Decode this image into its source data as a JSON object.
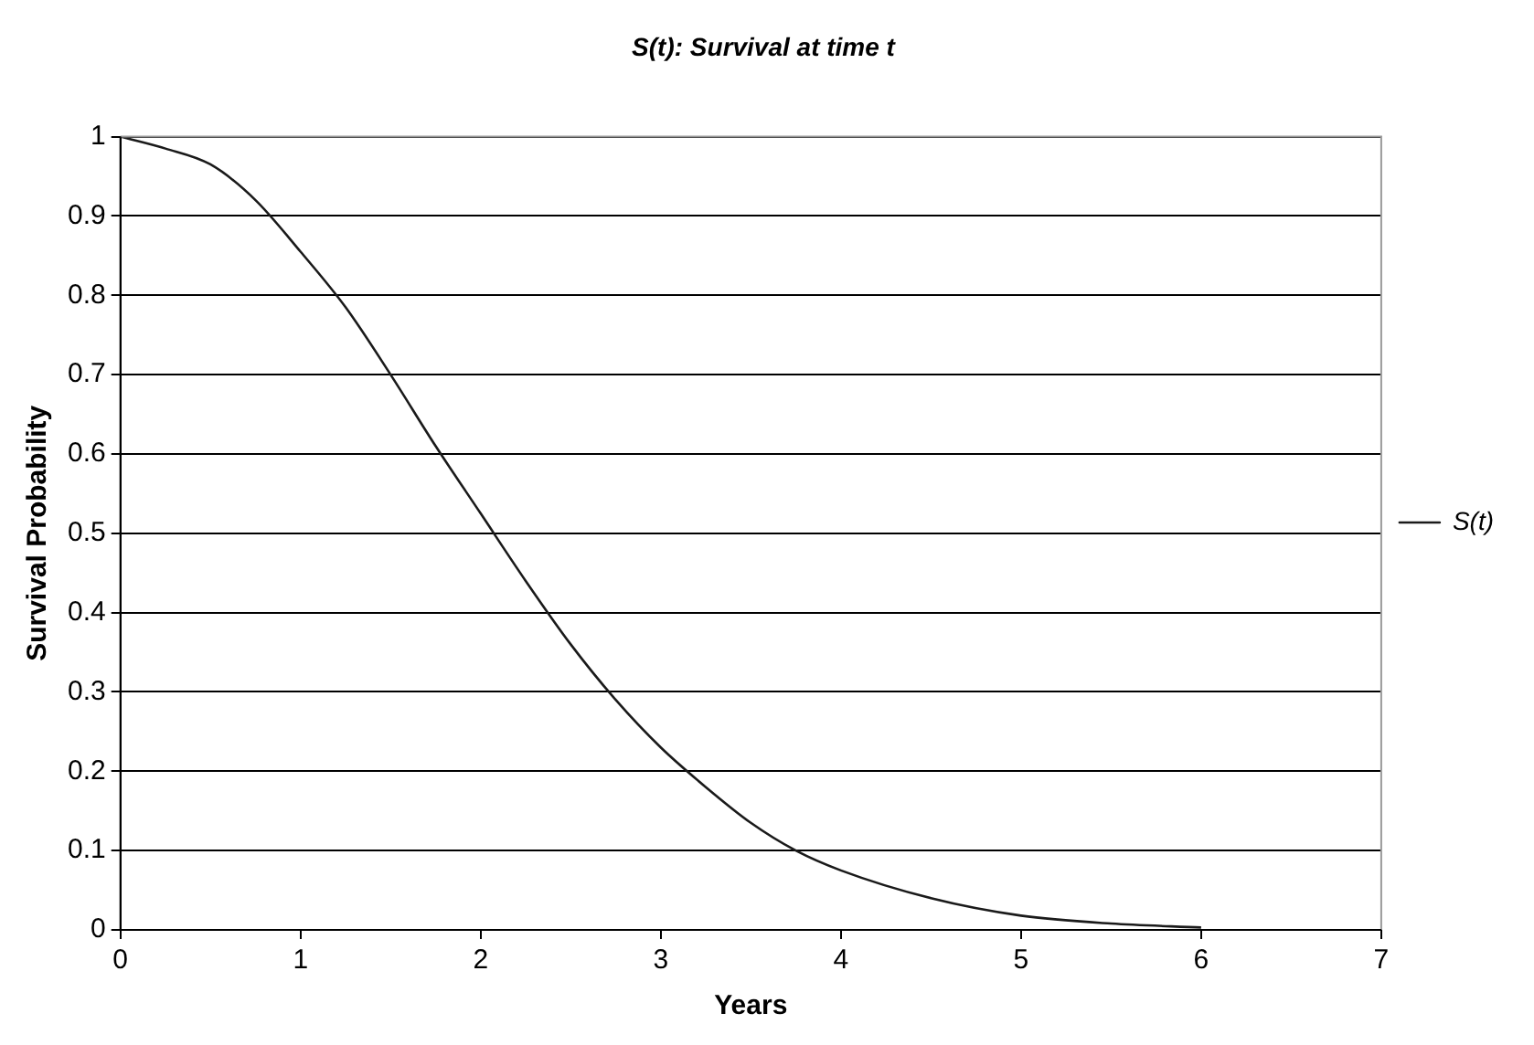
{
  "chart_data": {
    "type": "line",
    "title": "S(t): Survival at time t",
    "xlabel": "Years",
    "ylabel": "Survival Probability",
    "series": [
      {
        "name": "S(t)",
        "color": "#1a1a1a",
        "x": [
          0,
          0.25,
          0.5,
          0.75,
          1,
          1.25,
          1.5,
          1.75,
          2,
          2.25,
          2.5,
          2.75,
          3,
          3.25,
          3.5,
          3.75,
          4,
          4.5,
          5,
          5.5,
          6
        ],
        "values": [
          1,
          0.985,
          0.965,
          0.92,
          0.855,
          0.785,
          0.7,
          0.61,
          0.525,
          0.44,
          0.36,
          0.29,
          0.23,
          0.18,
          0.135,
          0.1,
          0.075,
          0.04,
          0.018,
          0.008,
          0.003
        ]
      }
    ],
    "xlim": [
      0,
      7
    ],
    "xticks": [
      0,
      1,
      2,
      3,
      4,
      5,
      6,
      7
    ],
    "ylim": [
      0,
      1
    ],
    "yticks": [
      0,
      0.1,
      0.2,
      0.3,
      0.4,
      0.5,
      0.6,
      0.7,
      0.8,
      0.9,
      1
    ],
    "grid": "y",
    "legend": "right",
    "marker": "none",
    "line_style": "solid"
  }
}
